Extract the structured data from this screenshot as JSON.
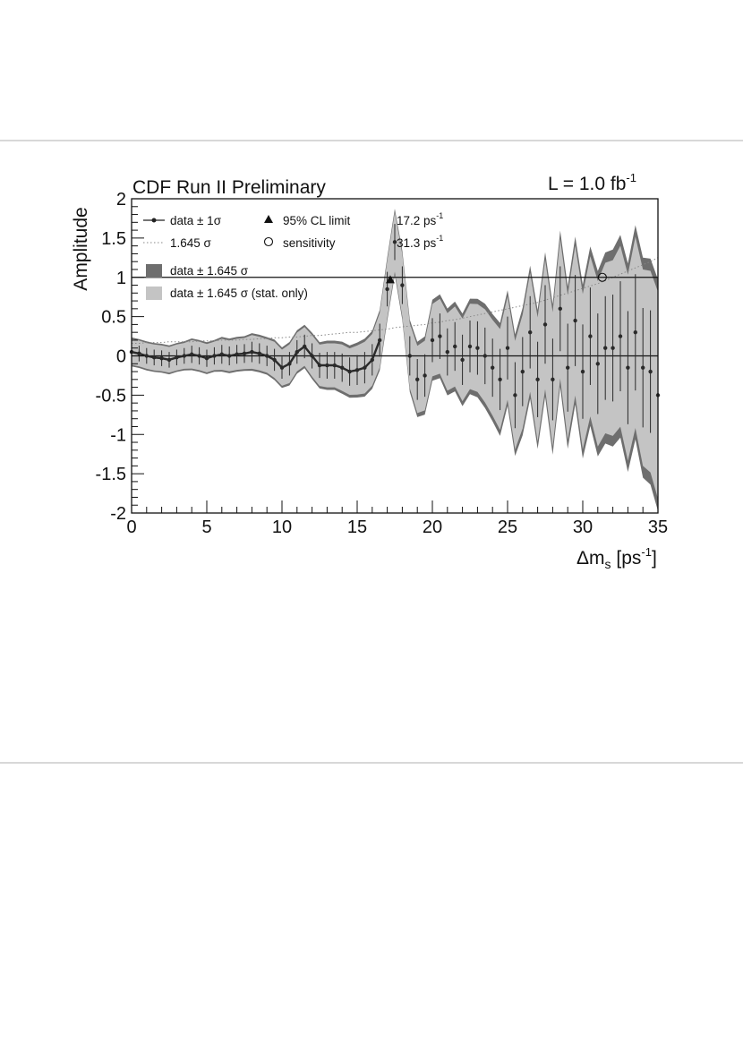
{
  "chart_data": {
    "type": "line",
    "title": "CDF Run II Preliminary",
    "luminosity": "L = 1.0 fb",
    "luminosity_exp": "-1",
    "xlabel": "Δm",
    "xlabel_sub": "s",
    "xlabel_unit": " [ps",
    "xlabel_exp": "-1",
    "xlabel_close": "]",
    "ylabel": "Amplitude",
    "xlim": [
      0,
      35
    ],
    "ylim": [
      -2,
      2
    ],
    "x_ticks": [
      0,
      5,
      10,
      15,
      20,
      25,
      30,
      35
    ],
    "x_tick_labels": [
      "0",
      "5",
      "10",
      "15",
      "20",
      "25",
      "30",
      "35"
    ],
    "y_ticks": [
      2,
      1.5,
      1,
      0.5,
      0,
      -0.5,
      -1,
      -1.5,
      -2
    ],
    "y_tick_labels": [
      "2",
      "1.5",
      "1",
      "0.5",
      "0",
      "-0.5",
      "-1",
      "-1.5",
      "-2"
    ],
    "reference_lines": [
      1,
      0
    ],
    "legend": {
      "data": "data ± 1σ",
      "sigma": "1.645 σ",
      "band_total": "data ± 1.645 σ",
      "band_stat": "data ± 1.645 σ (stat. only)",
      "limit": "95% CL limit",
      "limit_value": "17.2 ps",
      "limit_exp": "-1",
      "sensitivity": "sensitivity",
      "sensitivity_value": "31.3 ps",
      "sensitivity_exp": "-1"
    },
    "x": [
      0,
      0.5,
      1,
      1.5,
      2,
      2.5,
      3,
      3.5,
      4,
      4.5,
      5,
      5.5,
      6,
      6.5,
      7,
      7.5,
      8,
      8.5,
      9,
      9.5,
      10,
      10.5,
      11,
      11.5,
      12,
      12.5,
      13,
      13.5,
      14,
      14.5,
      15,
      15.5,
      16,
      16.5,
      17,
      17.5,
      18,
      18.5,
      19,
      19.5,
      20,
      20.5,
      21,
      21.5,
      22,
      22.5,
      23,
      23.5,
      24,
      24.5,
      25,
      25.5,
      26,
      26.5,
      27,
      27.5,
      28,
      28.5,
      29,
      29.5,
      30,
      30.5,
      31,
      31.5,
      32,
      32.5,
      33,
      33.5,
      34,
      34.5,
      35
    ],
    "series": [
      {
        "role": "amplitude",
        "values": [
          0.05,
          0.03,
          0.0,
          -0.02,
          -0.03,
          -0.05,
          -0.02,
          0.0,
          0.02,
          0.0,
          -0.03,
          0.0,
          0.02,
          0.0,
          0.02,
          0.03,
          0.05,
          0.03,
          0.0,
          -0.05,
          -0.15,
          -0.1,
          0.05,
          0.12,
          0.0,
          -0.12,
          -0.12,
          -0.12,
          -0.15,
          -0.2,
          -0.18,
          -0.15,
          -0.05,
          0.2,
          0.85,
          1.45,
          0.9,
          0.0,
          -0.3,
          -0.25,
          0.2,
          0.25,
          0.05,
          0.12,
          -0.05,
          0.12,
          0.1,
          0.0,
          -0.15,
          -0.3,
          0.1,
          -0.5,
          -0.2,
          0.3,
          -0.3,
          0.4,
          -0.3,
          0.6,
          -0.15,
          0.45,
          -0.2,
          0.25,
          -0.1,
          0.1,
          0.1,
          0.25,
          -0.15,
          0.3,
          -0.15,
          -0.2,
          -0.5
        ]
      },
      {
        "role": "error_1sigma",
        "values": [
          0.1,
          0.1,
          0.1,
          0.1,
          0.1,
          0.1,
          0.1,
          0.1,
          0.11,
          0.11,
          0.11,
          0.11,
          0.12,
          0.12,
          0.12,
          0.12,
          0.13,
          0.13,
          0.13,
          0.14,
          0.14,
          0.15,
          0.15,
          0.15,
          0.16,
          0.16,
          0.17,
          0.17,
          0.18,
          0.18,
          0.19,
          0.2,
          0.2,
          0.21,
          0.22,
          0.23,
          0.24,
          0.25,
          0.26,
          0.27,
          0.28,
          0.29,
          0.3,
          0.31,
          0.32,
          0.33,
          0.34,
          0.36,
          0.37,
          0.39,
          0.4,
          0.42,
          0.44,
          0.46,
          0.48,
          0.5,
          0.52,
          0.54,
          0.56,
          0.58,
          0.6,
          0.62,
          0.64,
          0.66,
          0.68,
          0.7,
          0.72,
          0.74,
          0.76,
          0.78,
          0.8
        ]
      },
      {
        "role": "sigma_1645",
        "values": [
          0.16,
          0.16,
          0.17,
          0.17,
          0.17,
          0.18,
          0.18,
          0.18,
          0.18,
          0.19,
          0.19,
          0.19,
          0.2,
          0.2,
          0.2,
          0.21,
          0.21,
          0.22,
          0.22,
          0.23,
          0.23,
          0.24,
          0.24,
          0.25,
          0.26,
          0.26,
          0.27,
          0.28,
          0.29,
          0.3,
          0.3,
          0.31,
          0.32,
          0.33,
          0.34,
          0.36,
          0.37,
          0.38,
          0.39,
          0.4,
          0.42,
          0.43,
          0.45,
          0.46,
          0.48,
          0.5,
          0.52,
          0.54,
          0.56,
          0.58,
          0.6,
          0.62,
          0.64,
          0.66,
          0.68,
          0.71,
          0.74,
          0.77,
          0.8,
          0.83,
          0.86,
          0.89,
          0.92,
          0.96,
          1.0,
          1.04,
          1.08,
          1.12,
          1.16,
          1.2,
          1.25
        ]
      }
    ],
    "limit_point": {
      "x": 17.2,
      "y": 0.97
    },
    "sensitivity_point": {
      "x": 31.3,
      "y": 1.0
    },
    "colors": {
      "band_total": "#6e6e6e",
      "band_stat": "#c4c4c4",
      "data": "#2a2a2a",
      "text": "#111111"
    }
  }
}
